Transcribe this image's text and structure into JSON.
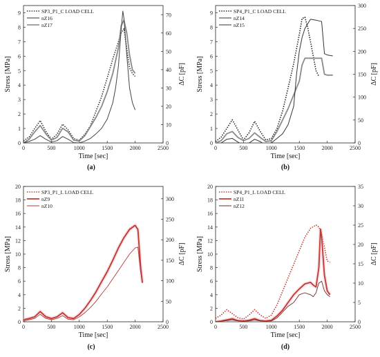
{
  "chart_data": [
    {
      "type": "line",
      "subfig_label": "(a)",
      "xlabel": "Time [sec]",
      "ylabel": "Stress [MPa]",
      "y2label": "ΔC [pF]",
      "xlim": [
        0,
        2500
      ],
      "ylim": [
        0,
        9.5
      ],
      "y2lim": [
        0,
        75
      ],
      "xticks": [
        0,
        500,
        1000,
        1500,
        2000,
        2500
      ],
      "yticks": [
        0,
        1,
        2,
        3,
        4,
        5,
        6,
        7,
        8,
        9
      ],
      "y2ticks": [
        0,
        10,
        20,
        30,
        40,
        50,
        60,
        70
      ],
      "color": "#000000",
      "series": [
        {
          "name": "SP3_P1_C LOAD CELL",
          "axis": "left",
          "style": "dotted",
          "shade": "#333333",
          "x": [
            0,
            100,
            200,
            300,
            400,
            500,
            600,
            700,
            800,
            900,
            1000,
            1100,
            1200,
            1300,
            1400,
            1500,
            1600,
            1700,
            1750,
            1800,
            1850,
            1900,
            1950,
            2000
          ],
          "y": [
            0.15,
            0.4,
            1.0,
            1.55,
            0.8,
            0.25,
            0.6,
            1.3,
            0.9,
            0.3,
            0.2,
            0.6,
            1.2,
            2.2,
            3.2,
            4.5,
            5.8,
            7.0,
            7.6,
            7.9,
            6.5,
            5.2,
            4.8,
            4.6
          ]
        },
        {
          "name": "nZ16",
          "axis": "right",
          "style": "solid",
          "shade": "#888888",
          "width": 1.8,
          "x": [
            0,
            100,
            200,
            300,
            400,
            500,
            600,
            700,
            800,
            900,
            1000,
            1100,
            1200,
            1300,
            1400,
            1500,
            1600,
            1700,
            1750,
            1800,
            1850,
            1900,
            1950,
            2000
          ],
          "y": [
            0,
            2,
            6,
            9.5,
            5,
            1.5,
            3,
            8,
            6,
            1.5,
            1,
            4,
            9,
            14,
            20,
            28,
            38,
            52,
            64,
            67,
            60,
            48,
            40,
            38
          ]
        },
        {
          "name": "nZ17",
          "axis": "right",
          "style": "solid",
          "shade": "#444444",
          "width": 1.0,
          "x": [
            0,
            100,
            200,
            300,
            400,
            500,
            600,
            700,
            800,
            900,
            1000,
            1100,
            1200,
            1300,
            1400,
            1500,
            1600,
            1650,
            1700,
            1750,
            1780,
            1800,
            1850,
            1900,
            1950,
            2000
          ],
          "y": [
            0,
            0.8,
            2,
            4,
            2,
            0.5,
            1.2,
            3.5,
            2,
            0.2,
            0,
            1,
            2.5,
            5,
            8,
            13,
            22,
            30,
            42,
            62,
            72,
            68,
            48,
            30,
            22,
            18
          ]
        }
      ]
    },
    {
      "type": "line",
      "subfig_label": "(b)",
      "xlabel": "Time [sec]",
      "ylabel": "Stress [MPa]",
      "y2label": "ΔC [pF]",
      "xlim": [
        0,
        2500
      ],
      "ylim": [
        0,
        9.5
      ],
      "y2lim": [
        0,
        300
      ],
      "xticks": [
        0,
        500,
        1000,
        1500,
        2000,
        2500
      ],
      "yticks": [
        0,
        1,
        2,
        3,
        4,
        5,
        6,
        7,
        8,
        9
      ],
      "y2ticks": [
        0,
        50,
        100,
        150,
        200,
        250,
        300
      ],
      "color": "#000000",
      "series": [
        {
          "name": "SP4_P1_C LOAD CELL",
          "axis": "left",
          "style": "dotted",
          "shade": "#222222",
          "x": [
            0,
            100,
            200,
            300,
            400,
            500,
            600,
            700,
            800,
            900,
            1000,
            1100,
            1200,
            1300,
            1400,
            1500,
            1550,
            1600,
            1650,
            1700,
            1750,
            1800,
            1850
          ],
          "y": [
            0.1,
            0.4,
            1.0,
            1.6,
            0.9,
            0.2,
            0.7,
            1.5,
            0.8,
            0.2,
            0.3,
            1.0,
            2.2,
            3.8,
            5.5,
            7.5,
            8.6,
            8.7,
            8.0,
            7.0,
            6.0,
            5.0,
            4.6
          ]
        },
        {
          "name": "nZ14",
          "axis": "right",
          "style": "solid",
          "shade": "#8a8a8a",
          "width": 1.8,
          "x": [
            0,
            100,
            200,
            300,
            400,
            500,
            600,
            700,
            800,
            900,
            1000,
            1100,
            1200,
            1300,
            1400,
            1500,
            1550,
            1600,
            1700,
            1800,
            1900,
            1950,
            2000,
            2100
          ],
          "y": [
            0,
            5,
            20,
            25,
            12,
            5,
            10,
            22,
            12,
            3,
            5,
            25,
            50,
            75,
            105,
            135,
            170,
            185,
            185,
            185,
            185,
            150,
            148,
            148
          ]
        },
        {
          "name": "nZ15",
          "axis": "right",
          "style": "solid",
          "shade": "#333333",
          "width": 1.0,
          "x": [
            0,
            100,
            200,
            300,
            400,
            500,
            600,
            700,
            800,
            900,
            1000,
            1100,
            1200,
            1300,
            1400,
            1450,
            1500,
            1550,
            1600,
            1650,
            1700,
            1800,
            1900,
            1950,
            2000,
            2100
          ],
          "y": [
            -5,
            0,
            8,
            10,
            2,
            -5,
            0,
            8,
            3,
            -5,
            0,
            10,
            20,
            40,
            80,
            150,
            200,
            230,
            250,
            260,
            270,
            268,
            265,
            195,
            192,
            190
          ]
        }
      ]
    },
    {
      "type": "line",
      "subfig_label": "(c)",
      "xlabel": "Time [sec]",
      "ylabel": "Stress [MPa]",
      "y2label": "ΔC [pF]",
      "xlim": [
        0,
        2500
      ],
      "ylim": [
        0,
        20
      ],
      "y2lim": [
        0,
        330
      ],
      "xticks": [
        0,
        500,
        1000,
        1500,
        2000,
        2500
      ],
      "yticks": [
        0,
        2,
        4,
        6,
        8,
        10,
        12,
        14,
        16,
        18,
        20
      ],
      "y2ticks": [
        0,
        50,
        100,
        150,
        200,
        250,
        300
      ],
      "color": "#c0392b",
      "series": [
        {
          "name": "SP3_P1_L LOAD CELL",
          "axis": "left",
          "style": "dotted",
          "shade": "#c0392b",
          "x": [
            0,
            100,
            200,
            300,
            400,
            500,
            600,
            700,
            800,
            900,
            1000,
            1100,
            1200,
            1300,
            1400,
            1500,
            1600,
            1700,
            1800,
            1900,
            2000,
            2050,
            2100,
            2130
          ],
          "y": [
            0.3,
            0.5,
            0.8,
            1.5,
            0.9,
            0.5,
            0.8,
            1.3,
            0.7,
            0.5,
            1.0,
            2.0,
            3.2,
            4.5,
            6.0,
            7.5,
            9.2,
            11.0,
            12.5,
            13.8,
            14.3,
            13.5,
            8.0,
            6.0
          ]
        },
        {
          "name": "nZ9",
          "axis": "right",
          "style": "solid",
          "shade": "#c0392b",
          "width": 1.8,
          "x": [
            0,
            100,
            200,
            300,
            400,
            500,
            600,
            700,
            800,
            900,
            1000,
            1100,
            1200,
            1300,
            1400,
            1500,
            1600,
            1700,
            1800,
            1900,
            2000,
            2050,
            2100,
            2130
          ],
          "y": [
            5,
            8,
            12,
            25,
            12,
            8,
            12,
            22,
            10,
            8,
            18,
            33,
            52,
            73,
            98,
            122,
            150,
            180,
            205,
            225,
            235,
            225,
            130,
            95
          ]
        },
        {
          "name": "nZ10",
          "axis": "right",
          "style": "solid",
          "shade": "#b03a3a",
          "width": 0.9,
          "x": [
            0,
            100,
            200,
            300,
            400,
            500,
            600,
            700,
            800,
            900,
            1000,
            1100,
            1200,
            1300,
            1400,
            1500,
            1600,
            1700,
            1800,
            1900,
            2000,
            2050,
            2100,
            2130
          ],
          "y": [
            2,
            5,
            8,
            18,
            8,
            5,
            8,
            15,
            6,
            5,
            12,
            22,
            35,
            50,
            68,
            85,
            105,
            125,
            145,
            165,
            180,
            182,
            120,
            95
          ]
        }
      ]
    },
    {
      "type": "line",
      "subfig_label": "(d)",
      "xlabel": "Time [sec]",
      "ylabel": "Stress [MPa]",
      "y2label": "ΔC [pF]",
      "xlim": [
        0,
        2500
      ],
      "ylim": [
        0,
        20
      ],
      "y2lim": [
        0,
        35
      ],
      "xticks": [
        0,
        500,
        1000,
        1500,
        2000,
        2500
      ],
      "yticks": [
        0,
        2,
        4,
        6,
        8,
        10,
        12,
        14,
        16,
        18,
        20
      ],
      "y2ticks": [
        0,
        5,
        10,
        15,
        20,
        25,
        30,
        35
      ],
      "color": "#c0392b",
      "series": [
        {
          "name": "SP4_P1_L LOAD CELL",
          "axis": "left",
          "style": "dotted",
          "shade": "#c0392b",
          "x": [
            0,
            100,
            200,
            300,
            400,
            500,
            600,
            700,
            800,
            900,
            1000,
            1100,
            1200,
            1300,
            1400,
            1500,
            1600,
            1700,
            1800,
            1850,
            1900,
            1950,
            2000,
            2050
          ],
          "y": [
            0.5,
            1.0,
            1.8,
            1.2,
            0.6,
            0.4,
            1.0,
            1.8,
            1.0,
            0.5,
            1.0,
            2.5,
            4.5,
            6.5,
            8.5,
            10.5,
            12.5,
            13.8,
            14.3,
            14.0,
            13.0,
            11.0,
            9.0,
            8.8
          ]
        },
        {
          "name": "nZ11",
          "axis": "right",
          "style": "solid",
          "shade": "#c0392b",
          "width": 1.8,
          "x": [
            0,
            100,
            200,
            300,
            400,
            500,
            600,
            700,
            800,
            900,
            1000,
            1100,
            1200,
            1300,
            1400,
            1500,
            1600,
            1700,
            1750,
            1800,
            1850,
            1880,
            1900,
            1950,
            2000,
            2050
          ],
          "y": [
            0,
            0.2,
            0.5,
            0.8,
            0.3,
            0.2,
            0.4,
            0.8,
            0.3,
            0.2,
            0.4,
            1.5,
            3.0,
            5.0,
            7.0,
            8.5,
            9.8,
            10.2,
            9.5,
            9.0,
            14,
            24,
            22,
            12,
            8,
            7
          ]
        },
        {
          "name": "nZ12",
          "axis": "right",
          "style": "solid",
          "shade": "#6e2b2b",
          "width": 0.9,
          "x": [
            0,
            100,
            200,
            300,
            400,
            500,
            600,
            700,
            800,
            900,
            1000,
            1100,
            1200,
            1300,
            1400,
            1500,
            1600,
            1700,
            1750,
            1800,
            1850,
            1900,
            1950,
            2000,
            2050
          ],
          "y": [
            0,
            0.1,
            0.3,
            0.5,
            0.2,
            0.1,
            0.2,
            0.5,
            0.2,
            0.1,
            0.2,
            1.0,
            2.5,
            4.0,
            5.0,
            7.0,
            7.5,
            7.0,
            6.5,
            7.5,
            10,
            10.5,
            8,
            7,
            6.5
          ]
        }
      ]
    }
  ]
}
